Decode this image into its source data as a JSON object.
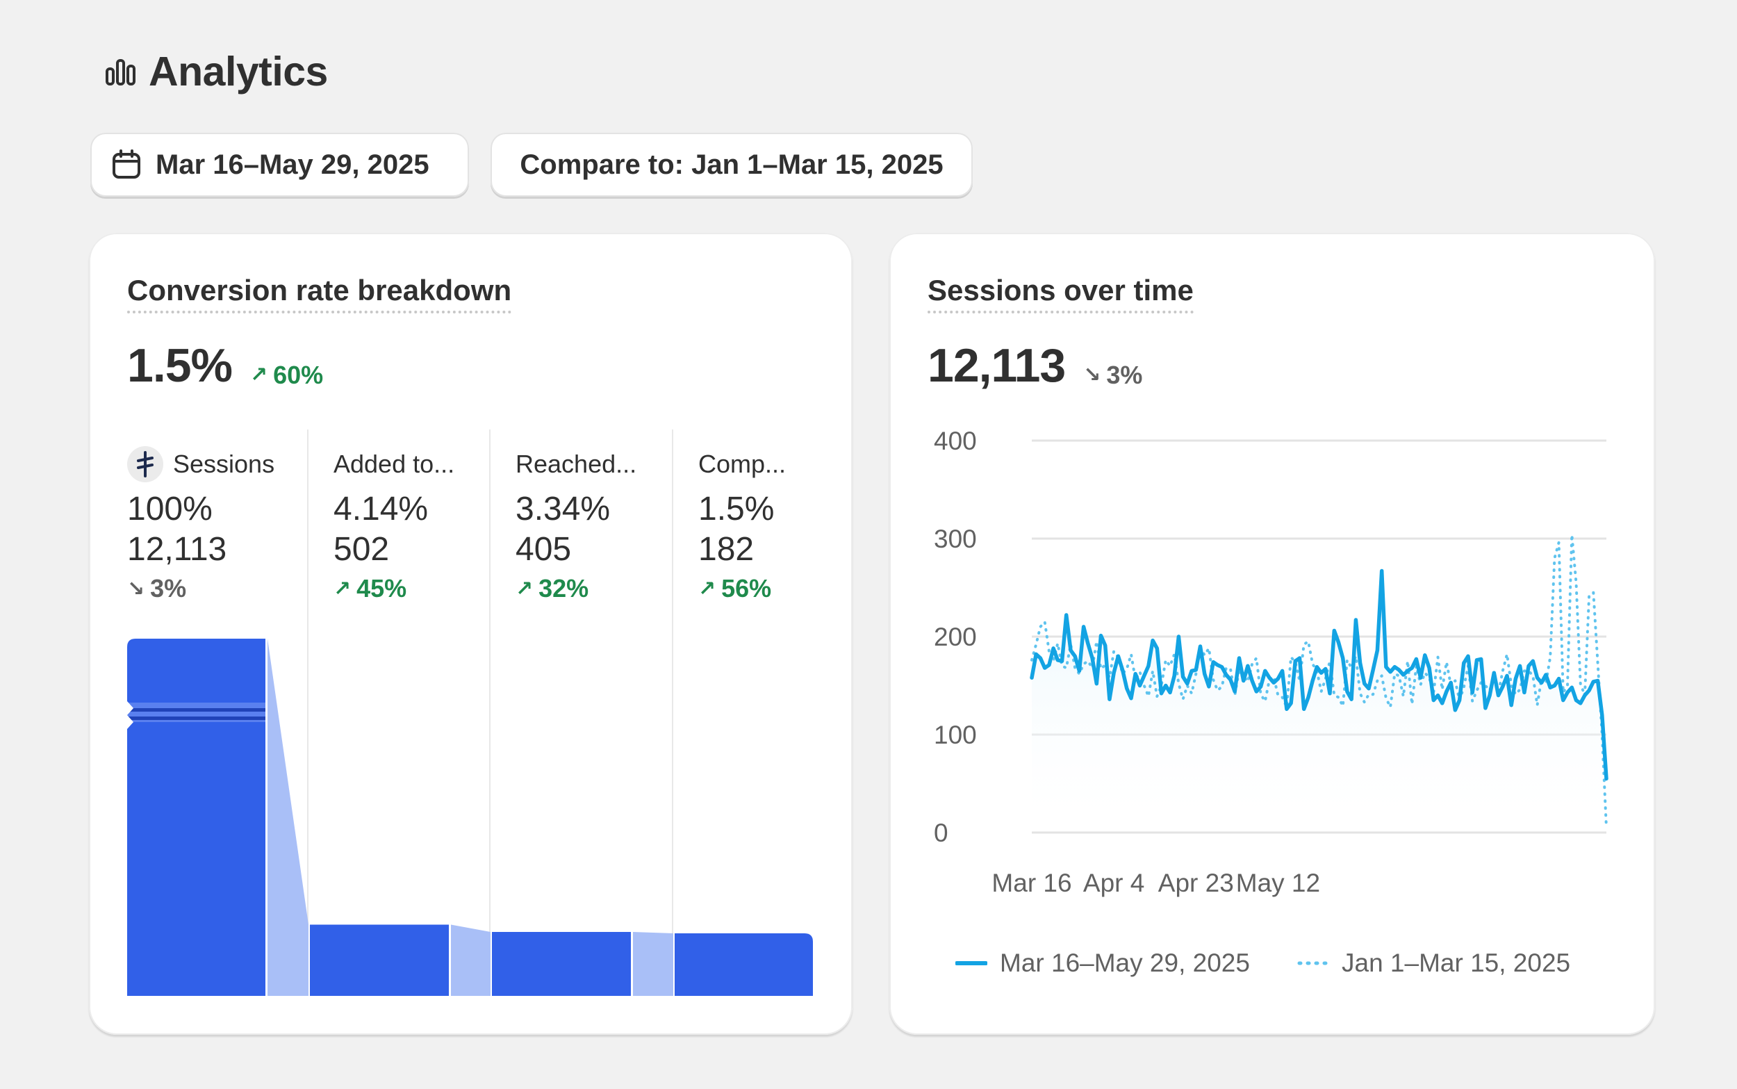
{
  "header": {
    "title": "Analytics",
    "icon": "bar-chart-icon"
  },
  "filters": {
    "date_range": {
      "label": "Mar 16–May 29, 2025",
      "icon": "calendar-icon"
    },
    "compare": {
      "label": "Compare to: Jan 1–Mar 15, 2025"
    }
  },
  "conversion": {
    "title": "Conversion rate breakdown",
    "value": "1.5%",
    "delta": "60%",
    "delta_direction": "up",
    "stages": [
      {
        "name": "Sessions",
        "percent": "100%",
        "count": "12,113",
        "delta": "3%",
        "delta_direction": "down",
        "share": 1.0
      },
      {
        "name": "Added to...",
        "percent": "4.14%",
        "count": "502",
        "delta": "45%",
        "delta_direction": "up",
        "share": 0.0414
      },
      {
        "name": "Reached...",
        "percent": "3.34%",
        "count": "405",
        "delta": "32%",
        "delta_direction": "up",
        "share": 0.0334
      },
      {
        "name": "Comp...",
        "percent": "1.5%",
        "count": "182",
        "delta": "56%",
        "delta_direction": "up",
        "share": 0.015
      }
    ],
    "bar_color": "#3160e8",
    "connector_color": "#a9bff7"
  },
  "sessions": {
    "title": "Sessions over time",
    "value": "12,113",
    "delta": "3%",
    "delta_direction": "down"
  },
  "chart_data": {
    "type": "line",
    "ylim": [
      0,
      400
    ],
    "y_ticks": [
      "0",
      "100",
      "200",
      "300",
      "400"
    ],
    "x_tick_labels": [
      "Mar 16",
      "Apr 4",
      "Apr 23",
      "May 12"
    ],
    "grid": true,
    "legend_position": "bottom",
    "series": [
      {
        "name": "Mar 16–May 29, 2025",
        "style": "solid",
        "color": "#13a3e3",
        "values": [
          158,
          182,
          178,
          168,
          171,
          188,
          176,
          175,
          222,
          186,
          180,
          165,
          210,
          193,
          178,
          152,
          201,
          191,
          136,
          163,
          180,
          166,
          147,
          137,
          162,
          150,
          160,
          170,
          196,
          188,
          142,
          150,
          143,
          160,
          200,
          159,
          152,
          165,
          166,
          190,
          162,
          149,
          174,
          171,
          169,
          161,
          156,
          144,
          178,
          155,
          170,
          155,
          144,
          149,
          165,
          158,
          153,
          157,
          165,
          126,
          132,
          175,
          178,
          126,
          138,
          155,
          169,
          163,
          167,
          142,
          206,
          194,
          178,
          144,
          136,
          217,
          173,
          152,
          147,
          166,
          186,
          267,
          169,
          164,
          169,
          166,
          161,
          165,
          168,
          177,
          158,
          181,
          168,
          135,
          140,
          132,
          144,
          153,
          125,
          135,
          173,
          180,
          143,
          176,
          177,
          127,
          140,
          163,
          140,
          149,
          160,
          130,
          157,
          170,
          143,
          170,
          175,
          158,
          153,
          161,
          148,
          150,
          157,
          135,
          143,
          148,
          135,
          132,
          140,
          145,
          154,
          155,
          120,
          55
        ]
      },
      {
        "name": "Jan 1–Mar 15, 2025",
        "style": "dotted",
        "color": "#5fc3ee",
        "values": [
          176,
          192,
          210,
          215,
          185,
          175,
          193,
          170,
          168,
          192,
          168,
          162,
          172,
          175,
          168,
          195,
          167,
          171,
          158,
          185,
          179,
          162,
          167,
          182,
          156,
          164,
          150,
          139,
          165,
          139,
          150,
          176,
          170,
          182,
          152,
          136,
          150,
          142,
          162,
          189,
          181,
          188,
          156,
          145,
          149,
          168,
          167,
          140,
          166,
          160,
          154,
          172,
          178,
          141,
          134,
          156,
          159,
          140,
          138,
          128,
          179,
          174,
          155,
          192,
          195,
          172,
          165,
          144,
          157,
          175,
          140,
          138,
          129,
          176,
          168,
          180,
          142,
          133,
          141,
          141,
          155,
          160,
          137,
          128,
          162,
          160,
          139,
          175,
          131,
          170,
          151,
          163,
          158,
          143,
          179,
          146,
          174,
          150,
          155,
          135,
          148,
          170,
          134,
          145,
          153,
          150,
          145,
          160,
          142,
          165,
          182,
          150,
          141,
          146,
          165,
          165,
          160,
          130,
          157,
          152,
          179,
          280,
          296,
          143,
          150,
          304,
          255,
          152,
          140,
          241,
          245,
          173,
          100,
          5
        ]
      }
    ]
  }
}
